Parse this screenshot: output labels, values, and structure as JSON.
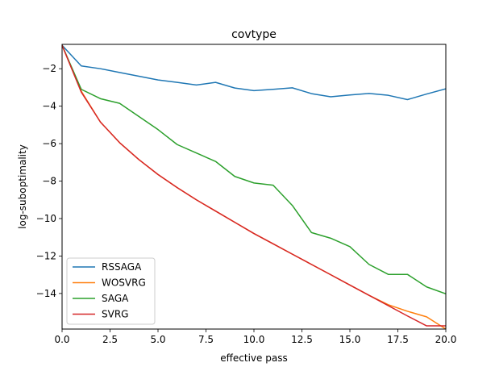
{
  "chart_data": {
    "type": "line",
    "title": "covtype",
    "xlabel": "effective pass",
    "ylabel": "log-suboptimality",
    "xlim": [
      0,
      20
    ],
    "ylim": [
      -15.9,
      -0.7
    ],
    "xticks": [
      0,
      2.5,
      5,
      7.5,
      10,
      12.5,
      15,
      17.5,
      20
    ],
    "xtick_labels": [
      "0.0",
      "2.5",
      "5.0",
      "7.5",
      "10.0",
      "12.5",
      "15.0",
      "17.5",
      "20.0"
    ],
    "yticks": [
      -2,
      -4,
      -6,
      -8,
      -10,
      -12,
      -14
    ],
    "ytick_labels": [
      "−2",
      "−4",
      "−6",
      "−8",
      "−10",
      "−12",
      "−14"
    ],
    "grid": false,
    "legend_position": "lower-left",
    "x": [
      0,
      1,
      2,
      3,
      4,
      5,
      6,
      7,
      8,
      9,
      10,
      11,
      12,
      13,
      14,
      15,
      16,
      17,
      18,
      19,
      20
    ],
    "series": [
      {
        "name": "RSSAGA",
        "color": "#1f77b4",
        "values": [
          -0.75,
          -1.85,
          -2.0,
          -2.2,
          -2.4,
          -2.6,
          -2.73,
          -2.87,
          -2.73,
          -3.03,
          -3.17,
          -3.1,
          -3.02,
          -3.33,
          -3.5,
          -3.4,
          -3.32,
          -3.42,
          -3.65,
          -3.35,
          -3.07
        ]
      },
      {
        "name": "WOSVRG",
        "color": "#ff7f0e",
        "values": [
          -0.75,
          -3.2,
          -4.85,
          -5.95,
          -6.85,
          -7.65,
          -8.35,
          -9.0,
          -9.6,
          -10.2,
          -10.8,
          -11.35,
          -11.9,
          -12.45,
          -13.0,
          -13.55,
          -14.1,
          -14.6,
          -14.95,
          -15.25,
          -15.9
        ]
      },
      {
        "name": "SAGA",
        "color": "#2ca02c",
        "values": [
          -0.75,
          -3.1,
          -3.6,
          -3.85,
          -4.55,
          -5.25,
          -6.05,
          -6.5,
          -6.95,
          -7.75,
          -8.1,
          -8.22,
          -9.3,
          -10.75,
          -11.05,
          -11.5,
          -12.45,
          -12.98,
          -12.98,
          -13.65,
          -14.02
        ]
      },
      {
        "name": "SVRG",
        "color": "#d62728",
        "values": [
          -0.75,
          -3.25,
          -4.85,
          -5.95,
          -6.85,
          -7.65,
          -8.35,
          -9.0,
          -9.6,
          -10.2,
          -10.8,
          -11.35,
          -11.9,
          -12.45,
          -13.0,
          -13.55,
          -14.1,
          -14.65,
          -15.2,
          -15.73,
          -15.73
        ]
      }
    ]
  }
}
